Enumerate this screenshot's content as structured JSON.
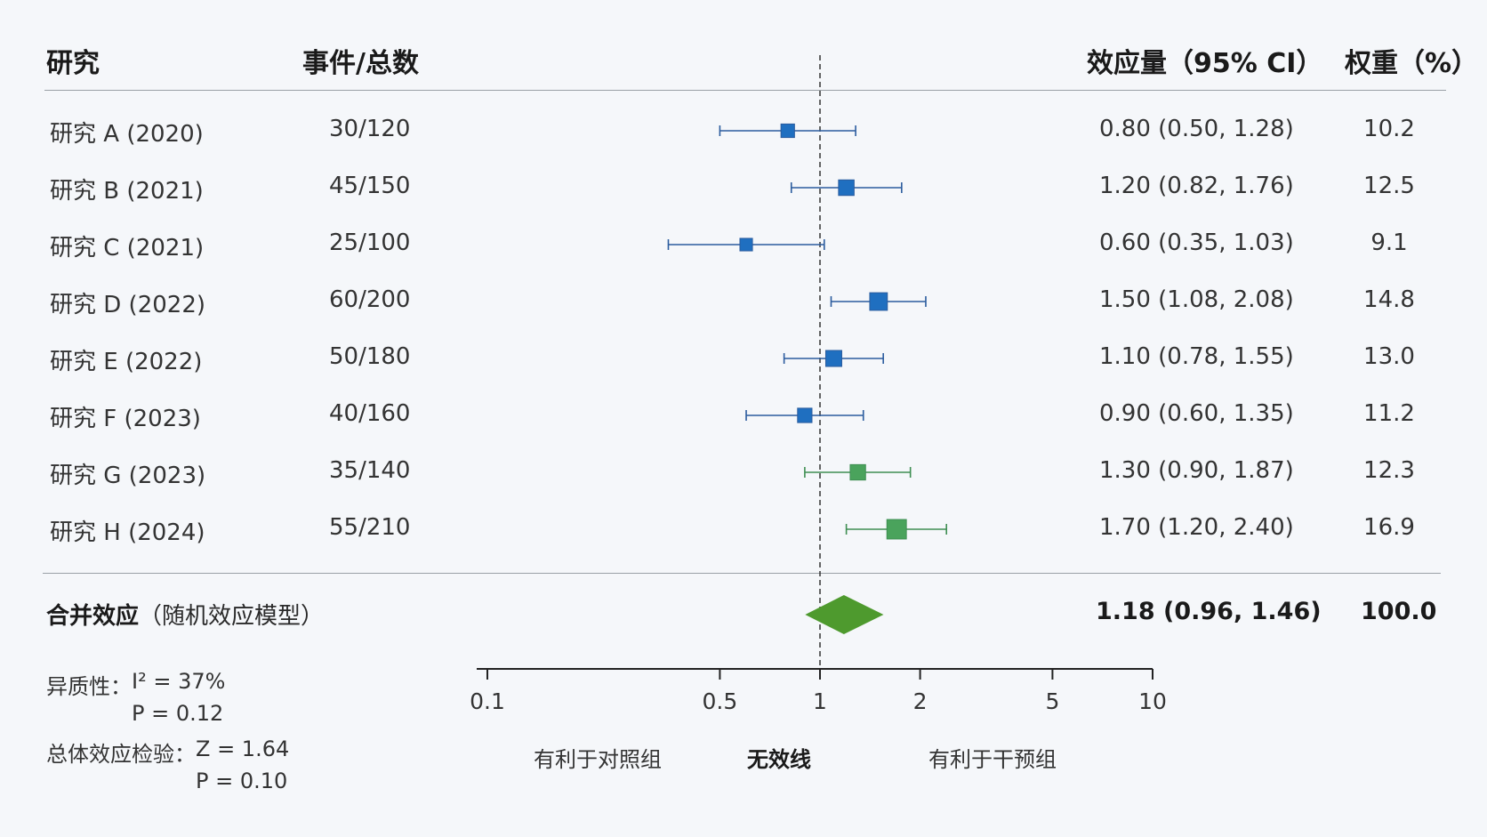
{
  "headers": {
    "study": "研究",
    "events": "事件/总数",
    "effect": "效应量（95% CI）",
    "weight": "权重（%）"
  },
  "studies": [
    {
      "name": "研究 A (2020)",
      "events": "30/120",
      "ci_text": "0.80 (0.50, 1.28)",
      "weight": "10.2"
    },
    {
      "name": "研究 B (2021)",
      "events": "45/150",
      "ci_text": "1.20 (0.82, 1.76)",
      "weight": "12.5"
    },
    {
      "name": "研究 C (2021)",
      "events": "25/100",
      "ci_text": "0.60 (0.35, 1.03)",
      "weight": "9.1"
    },
    {
      "name": "研究 D (2022)",
      "events": "60/200",
      "ci_text": "1.50 (1.08, 2.08)",
      "weight": "14.8"
    },
    {
      "name": "研究 E (2022)",
      "events": "50/180",
      "ci_text": "1.10 (0.78, 1.55)",
      "weight": "13.0"
    },
    {
      "name": "研究 F (2023)",
      "events": "40/160",
      "ci_text": "0.90 (0.60, 1.35)",
      "weight": "11.2"
    },
    {
      "name": "研究 G (2023)",
      "events": "35/140",
      "ci_text": "1.30 (0.90, 1.87)",
      "weight": "12.3"
    },
    {
      "name": "研究 H (2024)",
      "events": "55/210",
      "ci_text": "1.70 (1.20, 2.40)",
      "weight": "16.9"
    }
  ],
  "pooled": {
    "label_bold": "合并效应",
    "label_note": "（随机效应模型）",
    "ci_text": "1.18 (0.96, 1.46)",
    "weight": "100.0"
  },
  "stats": {
    "heterogeneity_label": "异质性：",
    "i2": "I² = 37%",
    "het_p": "P = 0.12",
    "overall_label": "总体效应检验：",
    "z": "Z = 1.64",
    "overall_p": "P = 0.10"
  },
  "direction": {
    "left": "有利于对照组",
    "center": "无效线",
    "right": "有利于干预组"
  },
  "colors": {
    "blue": "#1f6fc0",
    "blue_line": "#2b5c9e",
    "green": "#4aa35c",
    "green_line": "#3e8e52",
    "diamond": "#4e9a2e"
  },
  "chart_data": {
    "type": "forest",
    "x_scale": "log",
    "xlim": [
      0.1,
      10
    ],
    "xticks": [
      0.1,
      0.5,
      1,
      2,
      5,
      10
    ],
    "xtick_labels": [
      "0.1",
      "0.5",
      "1",
      "2",
      "5",
      "10"
    ],
    "null_line": 1,
    "points": [
      {
        "est": 0.8,
        "lo": 0.5,
        "hi": 1.28,
        "weight": 10.2,
        "color": "blue"
      },
      {
        "est": 1.2,
        "lo": 0.82,
        "hi": 1.76,
        "weight": 12.5,
        "color": "blue"
      },
      {
        "est": 0.6,
        "lo": 0.35,
        "hi": 1.03,
        "weight": 9.1,
        "color": "blue"
      },
      {
        "est": 1.5,
        "lo": 1.08,
        "hi": 2.08,
        "weight": 14.8,
        "color": "blue"
      },
      {
        "est": 1.1,
        "lo": 0.78,
        "hi": 1.55,
        "weight": 13.0,
        "color": "blue"
      },
      {
        "est": 0.9,
        "lo": 0.6,
        "hi": 1.35,
        "weight": 11.2,
        "color": "blue"
      },
      {
        "est": 1.3,
        "lo": 0.9,
        "hi": 1.87,
        "weight": 12.3,
        "color": "green"
      },
      {
        "est": 1.7,
        "lo": 1.2,
        "hi": 2.4,
        "weight": 16.9,
        "color": "green"
      }
    ],
    "pooled": {
      "est": 1.18,
      "lo": 0.96,
      "hi": 1.46
    }
  }
}
